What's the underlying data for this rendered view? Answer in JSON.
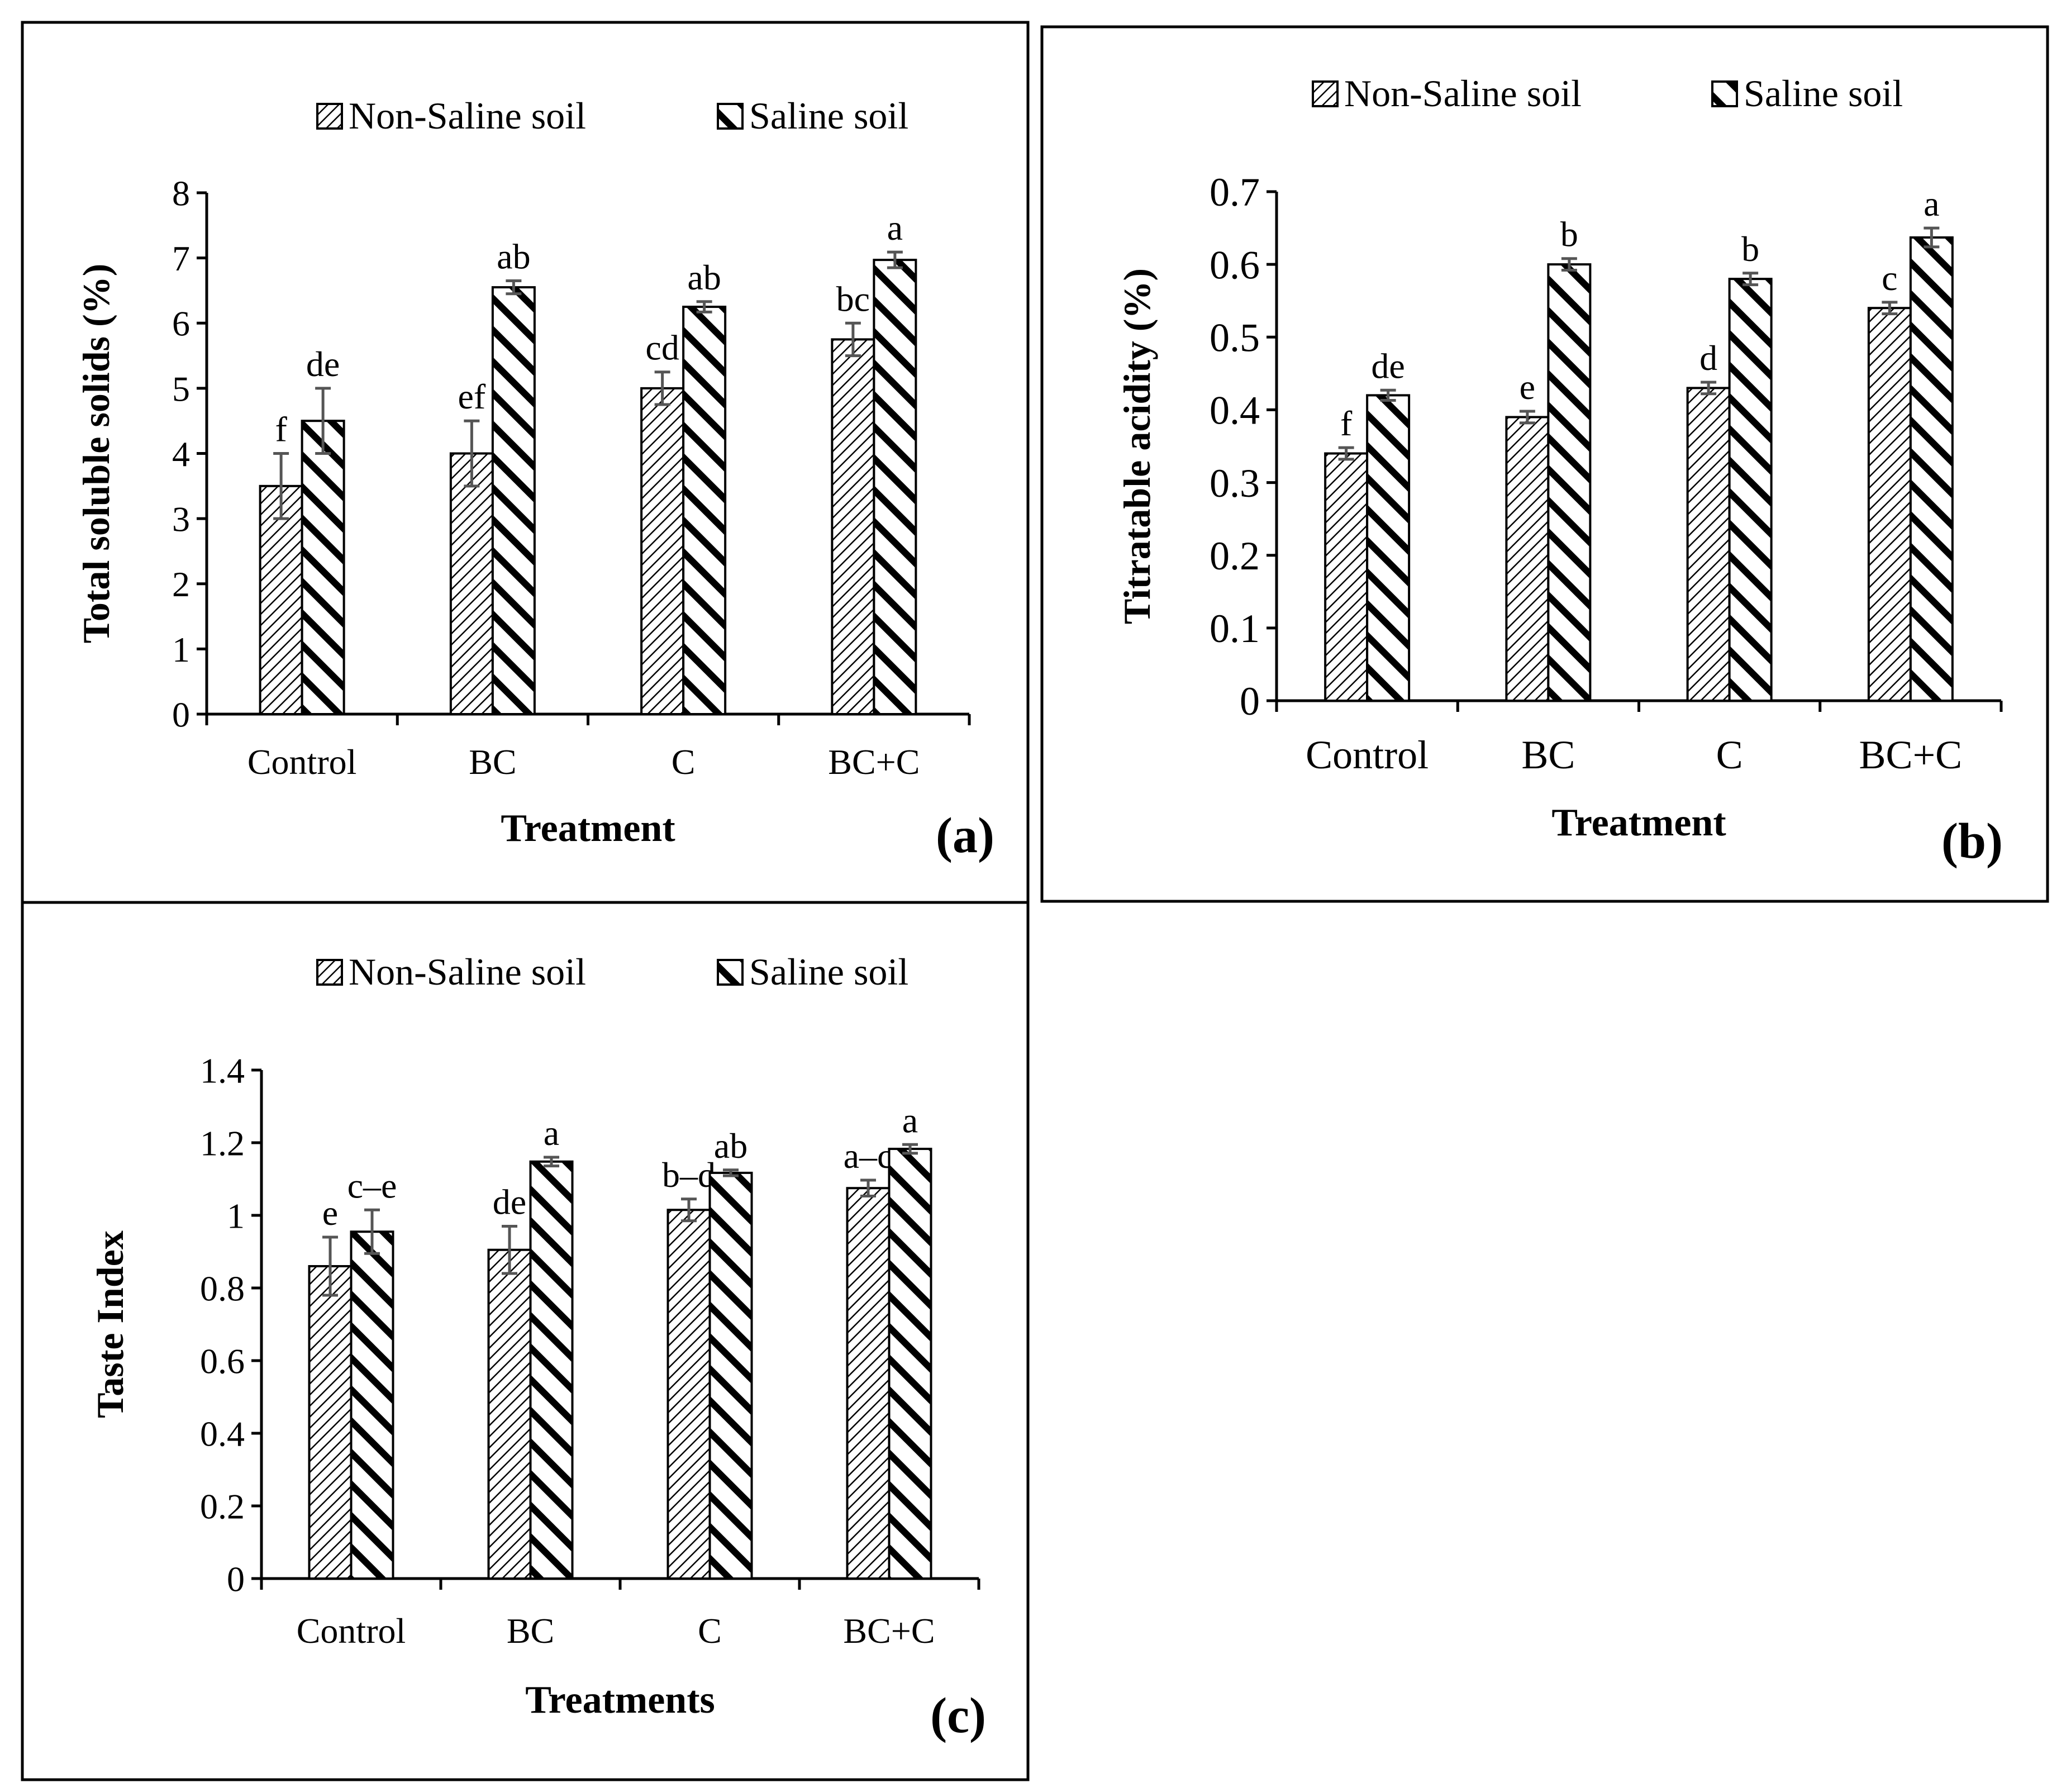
{
  "figure": {
    "panel_labels": [
      "(a)",
      "(b)",
      "(c)"
    ]
  },
  "colors": {
    "bar_outline": "#000000",
    "error_bar": "#555555",
    "frame": "#000000",
    "background": "#ffffff"
  },
  "chart_data": [
    {
      "type": "bar",
      "panel": "(a)",
      "ylabel": "Total soluble solids (%)",
      "xlabel": "Treatment",
      "categories": [
        "Control",
        "BC",
        "C",
        "BC+C"
      ],
      "ylim": [
        0,
        8
      ],
      "yticks": [
        "0",
        "1",
        "2",
        "3",
        "4",
        "5",
        "6",
        "7",
        "8"
      ],
      "legend_position": "top",
      "series": [
        {
          "name": "Non-Saline soil",
          "pattern": "fine-hatch",
          "values": [
            3.5,
            4.0,
            5.0,
            5.75
          ],
          "errors": [
            0.5,
            0.5,
            0.25,
            0.25
          ],
          "letters": [
            "f",
            "ef",
            "cd",
            "bc"
          ]
        },
        {
          "name": "Saline soil",
          "pattern": "bold-hatch",
          "values": [
            4.5,
            6.55,
            6.25,
            6.97
          ],
          "errors": [
            0.5,
            0.1,
            0.08,
            0.12
          ],
          "letters": [
            "de",
            "ab",
            "ab",
            "a"
          ]
        }
      ]
    },
    {
      "type": "bar",
      "panel": "(b)",
      "ylabel": "Titratable acidity (%)",
      "xlabel": "Treatment",
      "categories": [
        "Control",
        "BC",
        "C",
        "BC+C"
      ],
      "ylim": [
        0,
        0.7
      ],
      "yticks": [
        "0",
        "0.1",
        "0.2",
        "0.3",
        "0.4",
        "0.5",
        "0.6",
        "0.7"
      ],
      "legend_position": "top",
      "series": [
        {
          "name": "Non-Saline soil",
          "pattern": "fine-hatch",
          "values": [
            0.34,
            0.39,
            0.43,
            0.54
          ],
          "errors": [
            0.008,
            0.008,
            0.008,
            0.008
          ],
          "letters": [
            "f",
            "e",
            "d",
            "c"
          ]
        },
        {
          "name": "Saline soil",
          "pattern": "bold-hatch",
          "values": [
            0.42,
            0.6,
            0.58,
            0.637
          ],
          "errors": [
            0.007,
            0.008,
            0.008,
            0.013
          ],
          "letters": [
            "de",
            "b",
            "b",
            "a"
          ]
        }
      ]
    },
    {
      "type": "bar",
      "panel": "(c)",
      "ylabel": "Taste Index",
      "xlabel": "Treatments",
      "categories": [
        "Control",
        "BC",
        "C",
        "BC+C"
      ],
      "ylim": [
        0,
        1.4
      ],
      "yticks": [
        "0",
        "0.2",
        "0.4",
        "0.6",
        "0.8",
        "1",
        "1.2",
        "1.4"
      ],
      "legend_position": "top",
      "series": [
        {
          "name": "Non-Saline soil",
          "pattern": "fine-hatch",
          "values": [
            0.86,
            0.905,
            1.015,
            1.075
          ],
          "errors": [
            0.08,
            0.065,
            0.03,
            0.022
          ],
          "letters": [
            "e",
            "de",
            "b–d",
            "a–c"
          ]
        },
        {
          "name": "Saline soil",
          "pattern": "bold-hatch",
          "values": [
            0.955,
            1.148,
            1.117,
            1.183
          ],
          "errors": [
            0.06,
            0.012,
            0.008,
            0.012
          ],
          "letters": [
            "c–e",
            "a",
            "ab",
            "a"
          ]
        }
      ]
    }
  ]
}
